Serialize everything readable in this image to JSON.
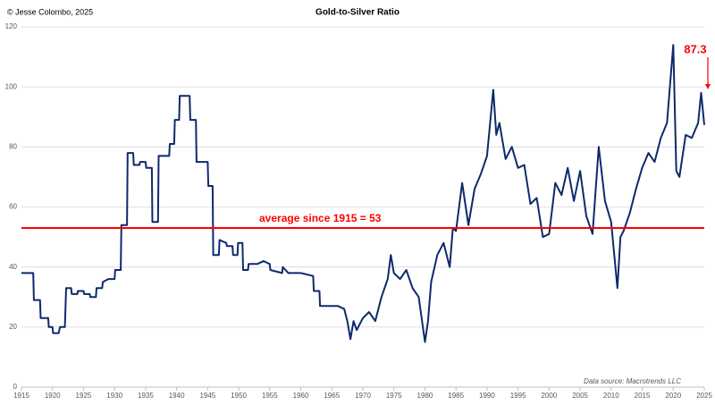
{
  "chart_data": {
    "type": "line",
    "title": "Gold-to-Silver Ratio",
    "copyright": "© Jesse Colombo, 2025",
    "source": "Data source: Macrotrends LLC",
    "average_line": {
      "value": 53,
      "label": "average since 1915 = 53",
      "color": "#ff0000"
    },
    "last_value_label": "87.3",
    "last_label_color": "#ff0000",
    "xlim": [
      1915,
      2025
    ],
    "xticks": [
      1915,
      1920,
      1925,
      1930,
      1935,
      1940,
      1945,
      1950,
      1955,
      1960,
      1965,
      1970,
      1975,
      1980,
      1985,
      1990,
      1995,
      2000,
      2005,
      2010,
      2015,
      2020,
      2025
    ],
    "ylim": [
      0,
      120
    ],
    "yticks": [
      0,
      20,
      40,
      60,
      80,
      100,
      120
    ],
    "grid": true,
    "series": [
      {
        "name": "Gold-to-Silver Ratio",
        "color": "#0d2a6b",
        "x": [
          1915,
          1916.9,
          1917,
          1918,
          1918.1,
          1919.3,
          1919.4,
          1920,
          1920.1,
          1921,
          1921.2,
          1922,
          1922.2,
          1923,
          1923.1,
          1924,
          1924.1,
          1925,
          1925.1,
          1926,
          1926.1,
          1927,
          1927.1,
          1928,
          1928.1,
          1929,
          1930,
          1930.1,
          1931,
          1931.1,
          1932,
          1932.1,
          1933,
          1933.1,
          1934,
          1934.1,
          1935,
          1935.1,
          1936,
          1936.1,
          1937,
          1937.1,
          1938.8,
          1938.9,
          1939.6,
          1939.7,
          1940.4,
          1940.5,
          1942.1,
          1942.2,
          1943.1,
          1943.2,
          1945,
          1945.1,
          1945.8,
          1945.9,
          1946.8,
          1946.9,
          1948,
          1948.1,
          1949,
          1949.1,
          1949.8,
          1949.9,
          1950.6,
          1950.7,
          1951.5,
          1951.6,
          1953,
          1954,
          1955,
          1955.1,
          1957,
          1957.1,
          1958,
          1960,
          1962,
          1962.1,
          1963,
          1963.1,
          1966,
          1967,
          1967.5,
          1968,
          1968.5,
          1969,
          1970,
          1971,
          1972,
          1973,
          1974,
          1974.5,
          1975,
          1976,
          1977,
          1978,
          1979,
          1980,
          1980.5,
          1981,
          1982,
          1983,
          1984,
          1984.5,
          1985,
          1986,
          1987,
          1988,
          1989,
          1990,
          1991,
          1991.5,
          1992,
          1993,
          1994,
          1995,
          1996,
          1997,
          1998,
          1999,
          2000,
          2001,
          2002,
          2003,
          2004,
          2005,
          2006,
          2007,
          2008,
          2009,
          2010,
          2011,
          2011.5,
          2012,
          2013,
          2014,
          2015,
          2016,
          2017,
          2018,
          2019,
          2020,
          2020.5,
          2021,
          2022,
          2023,
          2024,
          2024.5,
          2025
        ],
        "values": [
          38,
          38,
          29,
          29,
          23,
          23,
          20,
          20,
          18,
          18,
          20,
          20,
          33,
          33,
          31,
          31,
          32,
          32,
          31,
          31,
          30,
          30,
          33,
          33,
          35,
          36,
          36,
          39,
          39,
          54,
          54,
          78,
          78,
          74,
          74,
          75,
          75,
          73,
          73,
          55,
          55,
          77,
          77,
          81,
          81,
          89,
          89,
          97,
          97,
          89,
          89,
          75,
          75,
          67,
          67,
          44,
          44,
          49,
          48,
          47,
          47,
          44,
          44,
          48,
          48,
          39,
          39,
          41,
          41,
          42,
          41,
          39,
          38,
          40,
          38,
          38,
          37,
          32,
          32,
          27,
          27,
          26,
          22,
          16,
          22,
          19,
          23,
          25,
          22,
          30,
          36,
          44,
          38,
          36,
          39,
          33,
          30,
          15,
          22,
          35,
          44,
          48,
          40,
          53,
          52,
          68,
          54,
          66,
          71,
          77,
          99,
          84,
          88,
          76,
          80,
          73,
          74,
          61,
          63,
          50,
          51,
          68,
          64,
          73,
          62,
          72,
          57,
          51,
          80,
          62,
          55,
          33,
          50,
          52,
          58,
          66,
          73,
          78,
          75,
          83,
          88,
          114,
          72,
          70,
          84,
          83,
          88,
          98,
          87.3
        ]
      }
    ]
  }
}
